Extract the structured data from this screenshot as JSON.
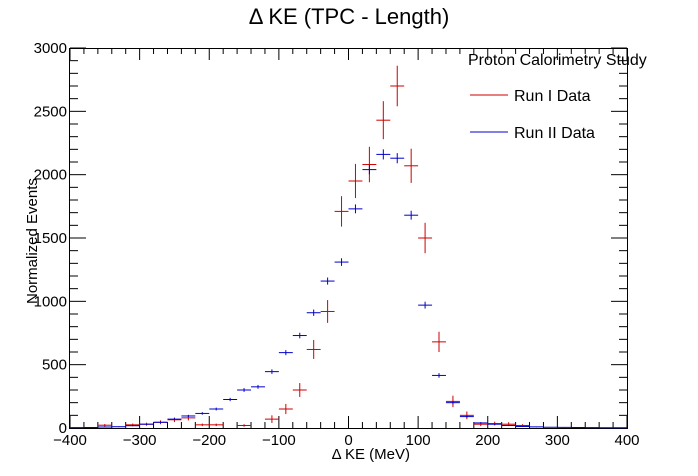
{
  "chart_data": {
    "type": "scatter",
    "title": "Δ KE (TPC - Length)",
    "xlabel": "Δ KE (MeV)",
    "ylabel": "Normalized Events",
    "xlim": [
      -400,
      400
    ],
    "ylim": [
      0,
      3000
    ],
    "xticks": [
      -400,
      -300,
      -200,
      -100,
      0,
      100,
      200,
      300,
      400
    ],
    "yticks": [
      0,
      500,
      1000,
      1500,
      2000,
      2500,
      3000
    ],
    "xtick_labels": [
      "−400",
      "−300",
      "−200",
      "−100",
      "0",
      "100",
      "200",
      "300",
      "400"
    ],
    "ytick_labels": [
      "0",
      "500",
      "1000",
      "1500",
      "2000",
      "2500",
      "3000"
    ],
    "bin_width": 20,
    "legend": {
      "placement": "top-right",
      "header": "Proton Calorimetry Study",
      "entries": [
        {
          "label": "Run I Data",
          "color": "#cc0000"
        },
        {
          "label": "Run II Data",
          "color": "#0000cc"
        }
      ]
    },
    "series": [
      {
        "name": "Run I Data",
        "color": "#cc0000",
        "x": [
          -350,
          -310,
          -290,
          -270,
          -250,
          -230,
          -210,
          -190,
          -150,
          -110,
          -90,
          -70,
          -50,
          -30,
          -10,
          10,
          30,
          50,
          70,
          90,
          110,
          130,
          150,
          170,
          190,
          210,
          230,
          250
        ],
        "y": [
          22,
          25,
          30,
          45,
          65,
          80,
          25,
          25,
          20,
          70,
          150,
          300,
          620,
          920,
          1710,
          1950,
          2080,
          2430,
          2700,
          2070,
          1500,
          680,
          210,
          100,
          30,
          35,
          30,
          20
        ],
        "yerr": [
          10,
          10,
          12,
          15,
          18,
          20,
          10,
          10,
          10,
          30,
          40,
          55,
          75,
          90,
          120,
          135,
          140,
          150,
          160,
          135,
          120,
          80,
          45,
          30,
          15,
          15,
          15,
          10
        ]
      },
      {
        "name": "Run II Data",
        "color": "#0000cc",
        "x": [
          -390,
          -370,
          -350,
          -330,
          -310,
          -290,
          -270,
          -250,
          -230,
          -210,
          -190,
          -170,
          -150,
          -130,
          -110,
          -90,
          -70,
          -50,
          -30,
          -10,
          10,
          30,
          50,
          70,
          90,
          110,
          130,
          150,
          170,
          190,
          210,
          230,
          250,
          270,
          290,
          310,
          330,
          350,
          370,
          390
        ],
        "y": [
          3,
          4,
          8,
          10,
          18,
          30,
          45,
          70,
          95,
          115,
          150,
          225,
          300,
          325,
          445,
          595,
          730,
          910,
          1160,
          1310,
          1730,
          2040,
          2160,
          2130,
          1680,
          970,
          415,
          200,
          90,
          40,
          30,
          20,
          12,
          9,
          6,
          5,
          4,
          3,
          2,
          2
        ],
        "yerr": [
          2,
          2,
          3,
          3,
          4,
          5,
          6,
          8,
          9,
          10,
          11,
          13,
          15,
          15,
          18,
          20,
          22,
          25,
          28,
          30,
          35,
          38,
          40,
          40,
          35,
          27,
          18,
          12,
          8,
          6,
          5,
          4,
          3,
          3,
          2,
          2,
          2,
          2,
          1,
          1
        ]
      }
    ]
  }
}
